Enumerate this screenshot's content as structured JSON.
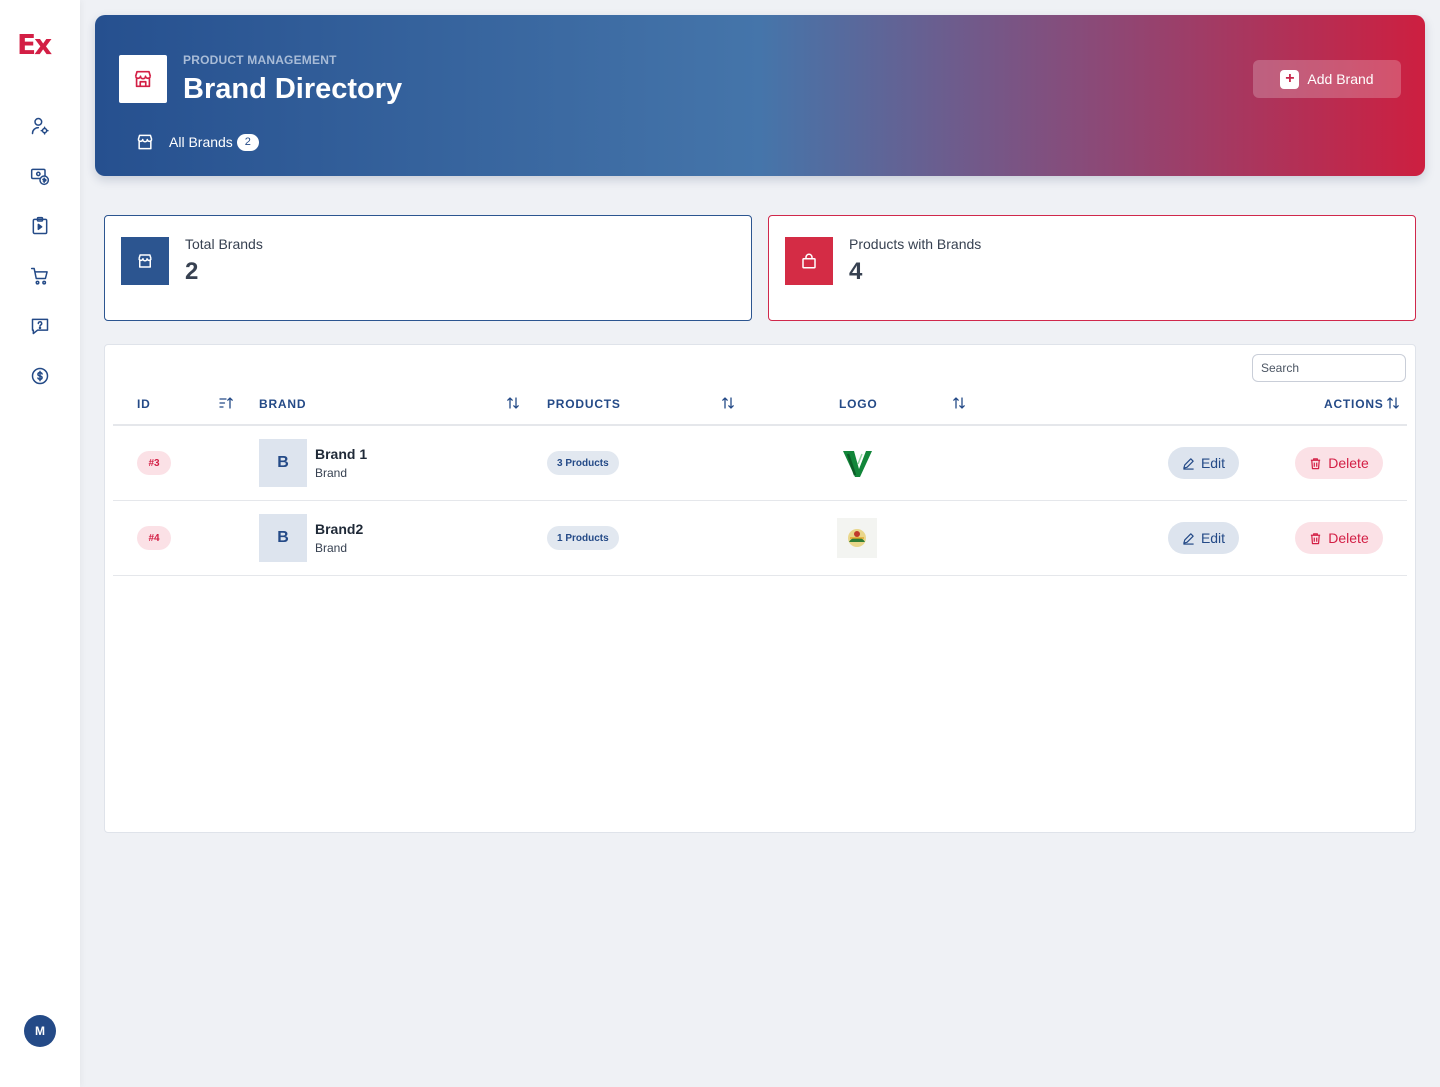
{
  "sidebar": {
    "logo_text": "Ex",
    "nav": [
      {
        "icon": "user-settings-icon"
      },
      {
        "icon": "billing-icon"
      },
      {
        "icon": "clipboard-icon"
      },
      {
        "icon": "cart-icon"
      },
      {
        "icon": "help-message-icon"
      },
      {
        "icon": "dollar-icon"
      }
    ],
    "avatar_initial": "M"
  },
  "header": {
    "eyebrow": "PRODUCT MANAGEMENT",
    "title": "Brand Directory",
    "tab_label": "All Brands",
    "tab_count": "2",
    "add_button": "Add Brand",
    "gradient": [
      "#26508f",
      "#4575aa",
      "#cd1f40"
    ]
  },
  "stats": {
    "total_brands": {
      "label": "Total Brands",
      "value": "2",
      "color": "#2c5590"
    },
    "products_with_brands": {
      "label": "Products with Brands",
      "value": "4",
      "color": "#d42c45"
    }
  },
  "table": {
    "search_placeholder": "Search",
    "columns": {
      "id": "ID",
      "brand": "BRAND",
      "products": "PRODUCTS",
      "logo": "LOGO",
      "actions": "ACTIONS"
    },
    "rows": [
      {
        "id": "#3",
        "initial": "B",
        "name": "Brand 1",
        "subtitle": "Brand",
        "products": "3 Products",
        "logo": "green-v-logo",
        "edit": "Edit",
        "delete": "Delete"
      },
      {
        "id": "#4",
        "initial": "B",
        "name": "Brand2",
        "subtitle": "Brand",
        "products": "1 Products",
        "logo": "round-emblem-logo",
        "edit": "Edit",
        "delete": "Delete"
      }
    ]
  },
  "colors": {
    "accent_blue": "#244a87",
    "accent_red": "#d31f45"
  }
}
